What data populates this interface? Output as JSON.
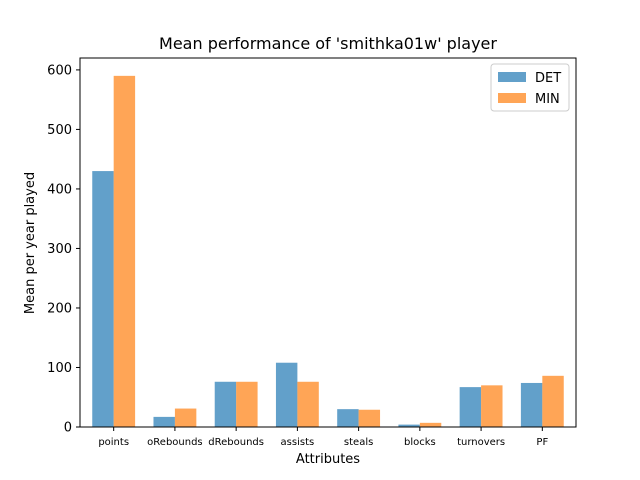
{
  "chart_data": {
    "type": "bar",
    "title": "Mean performance of 'smithka01w' player",
    "xlabel": "Attributes",
    "ylabel": "Mean per year played",
    "categories": [
      "points",
      "oRebounds",
      "dRebounds",
      "assists",
      "steals",
      "blocks",
      "turnovers",
      "PF"
    ],
    "series": [
      {
        "name": "DET",
        "color": "#1f77b4",
        "values": [
          430,
          17,
          76,
          108,
          30,
          4,
          67,
          74
        ]
      },
      {
        "name": "MIN",
        "color": "#ff7f0e",
        "values": [
          590,
          31,
          76,
          76,
          29,
          7,
          70,
          86
        ]
      }
    ],
    "ylim": [
      0,
      620
    ],
    "yticks": [
      0,
      100,
      200,
      300,
      400,
      500,
      600
    ],
    "grid": false,
    "legend_position": "top-right",
    "bar_opacity": 0.7
  }
}
